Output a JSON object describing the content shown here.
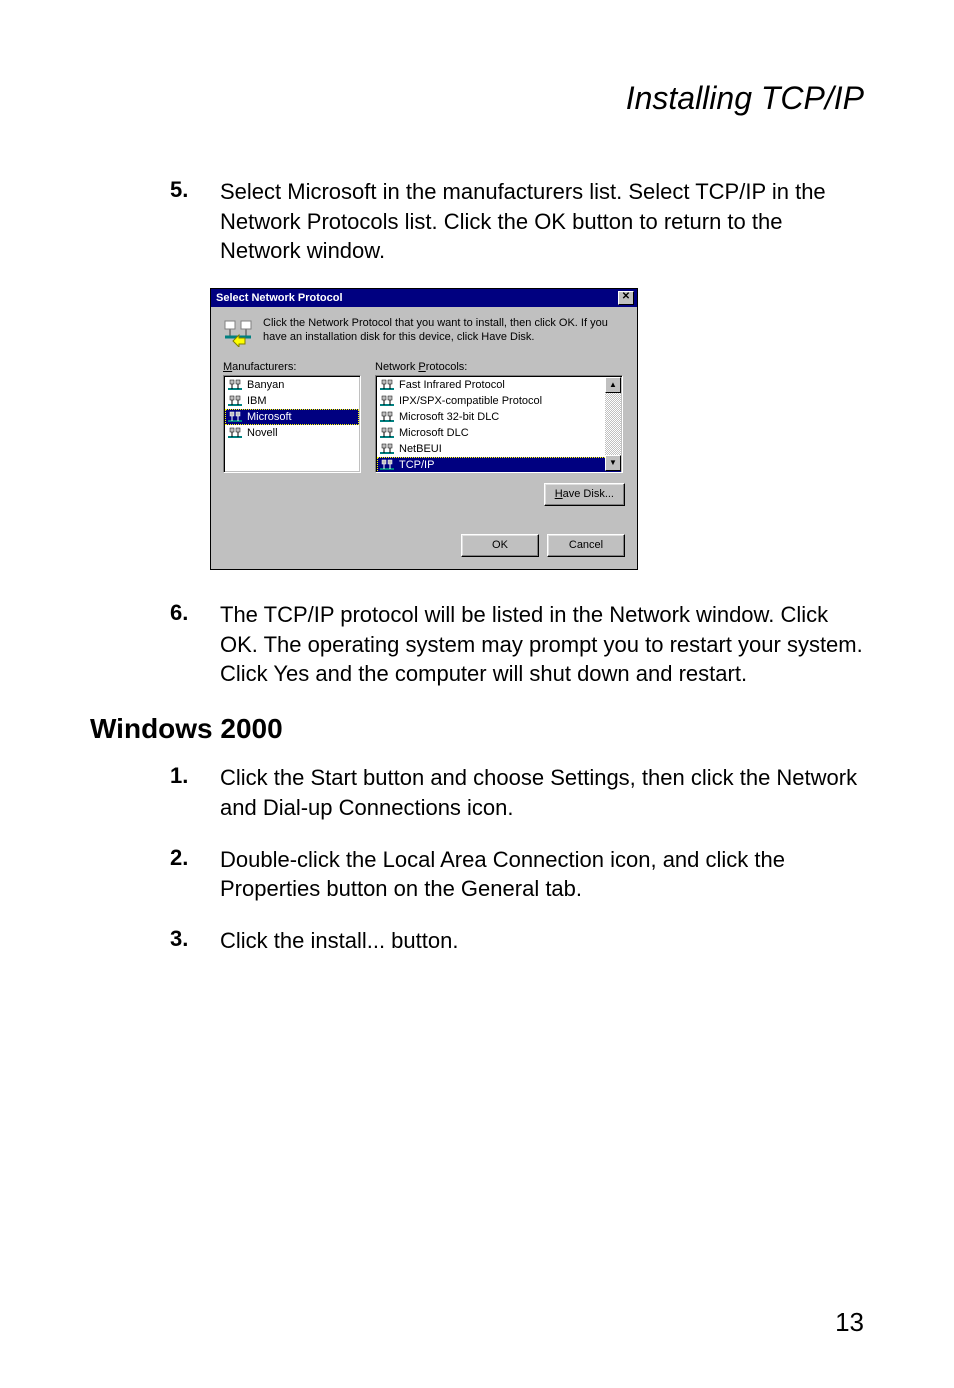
{
  "header": {
    "title": "Installing TCP/IP"
  },
  "steps_a": [
    {
      "num": "5.",
      "text": "Select Microsoft in the manufacturers list. Select TCP/IP in the Network Protocols list. Click the OK button to return to the Network window."
    }
  ],
  "dialog": {
    "title": "Select Network Protocol",
    "info_text": "Click the Network Protocol that you want to install, then click OK. If you have an installation disk for this device, click Have Disk.",
    "manufacturers_label": "Manufacturers:",
    "protocols_label": "Network Protocols:",
    "manufacturers": [
      {
        "label": "Banyan",
        "selected": false
      },
      {
        "label": "IBM",
        "selected": false
      },
      {
        "label": "Microsoft",
        "selected": true
      },
      {
        "label": "Novell",
        "selected": false
      }
    ],
    "protocols": [
      {
        "label": "Fast Infrared Protocol",
        "selected": false
      },
      {
        "label": "IPX/SPX-compatible Protocol",
        "selected": false
      },
      {
        "label": "Microsoft 32-bit DLC",
        "selected": false
      },
      {
        "label": "Microsoft DLC",
        "selected": false
      },
      {
        "label": "NetBEUI",
        "selected": false
      },
      {
        "label": "TCP/IP",
        "selected": true
      }
    ],
    "have_disk": "Have Disk...",
    "ok": "OK",
    "cancel": "Cancel"
  },
  "steps_b": [
    {
      "num": "6.",
      "text": "The TCP/IP protocol will be listed in the Network window. Click OK. The operating system may prompt you to restart your system. Click Yes and the computer will shut down and restart."
    }
  ],
  "section_heading": "Windows 2000",
  "steps_c": [
    {
      "num": "1.",
      "text": "Click the Start button and choose Settings, then click the Network and Dial-up Connections icon."
    },
    {
      "num": "2.",
      "text": "Double-click the Local Area Connection icon, and click the Properties button on the General tab."
    },
    {
      "num": "3.",
      "text": "Click the install... button."
    }
  ],
  "page_number": "13",
  "colors": {
    "titlebar_bg": "#000080",
    "dialog_bg": "#c0c0c0",
    "selected_bg": "#000080",
    "selected_fg": "#ffffff",
    "page_bg": "#ffffff"
  }
}
